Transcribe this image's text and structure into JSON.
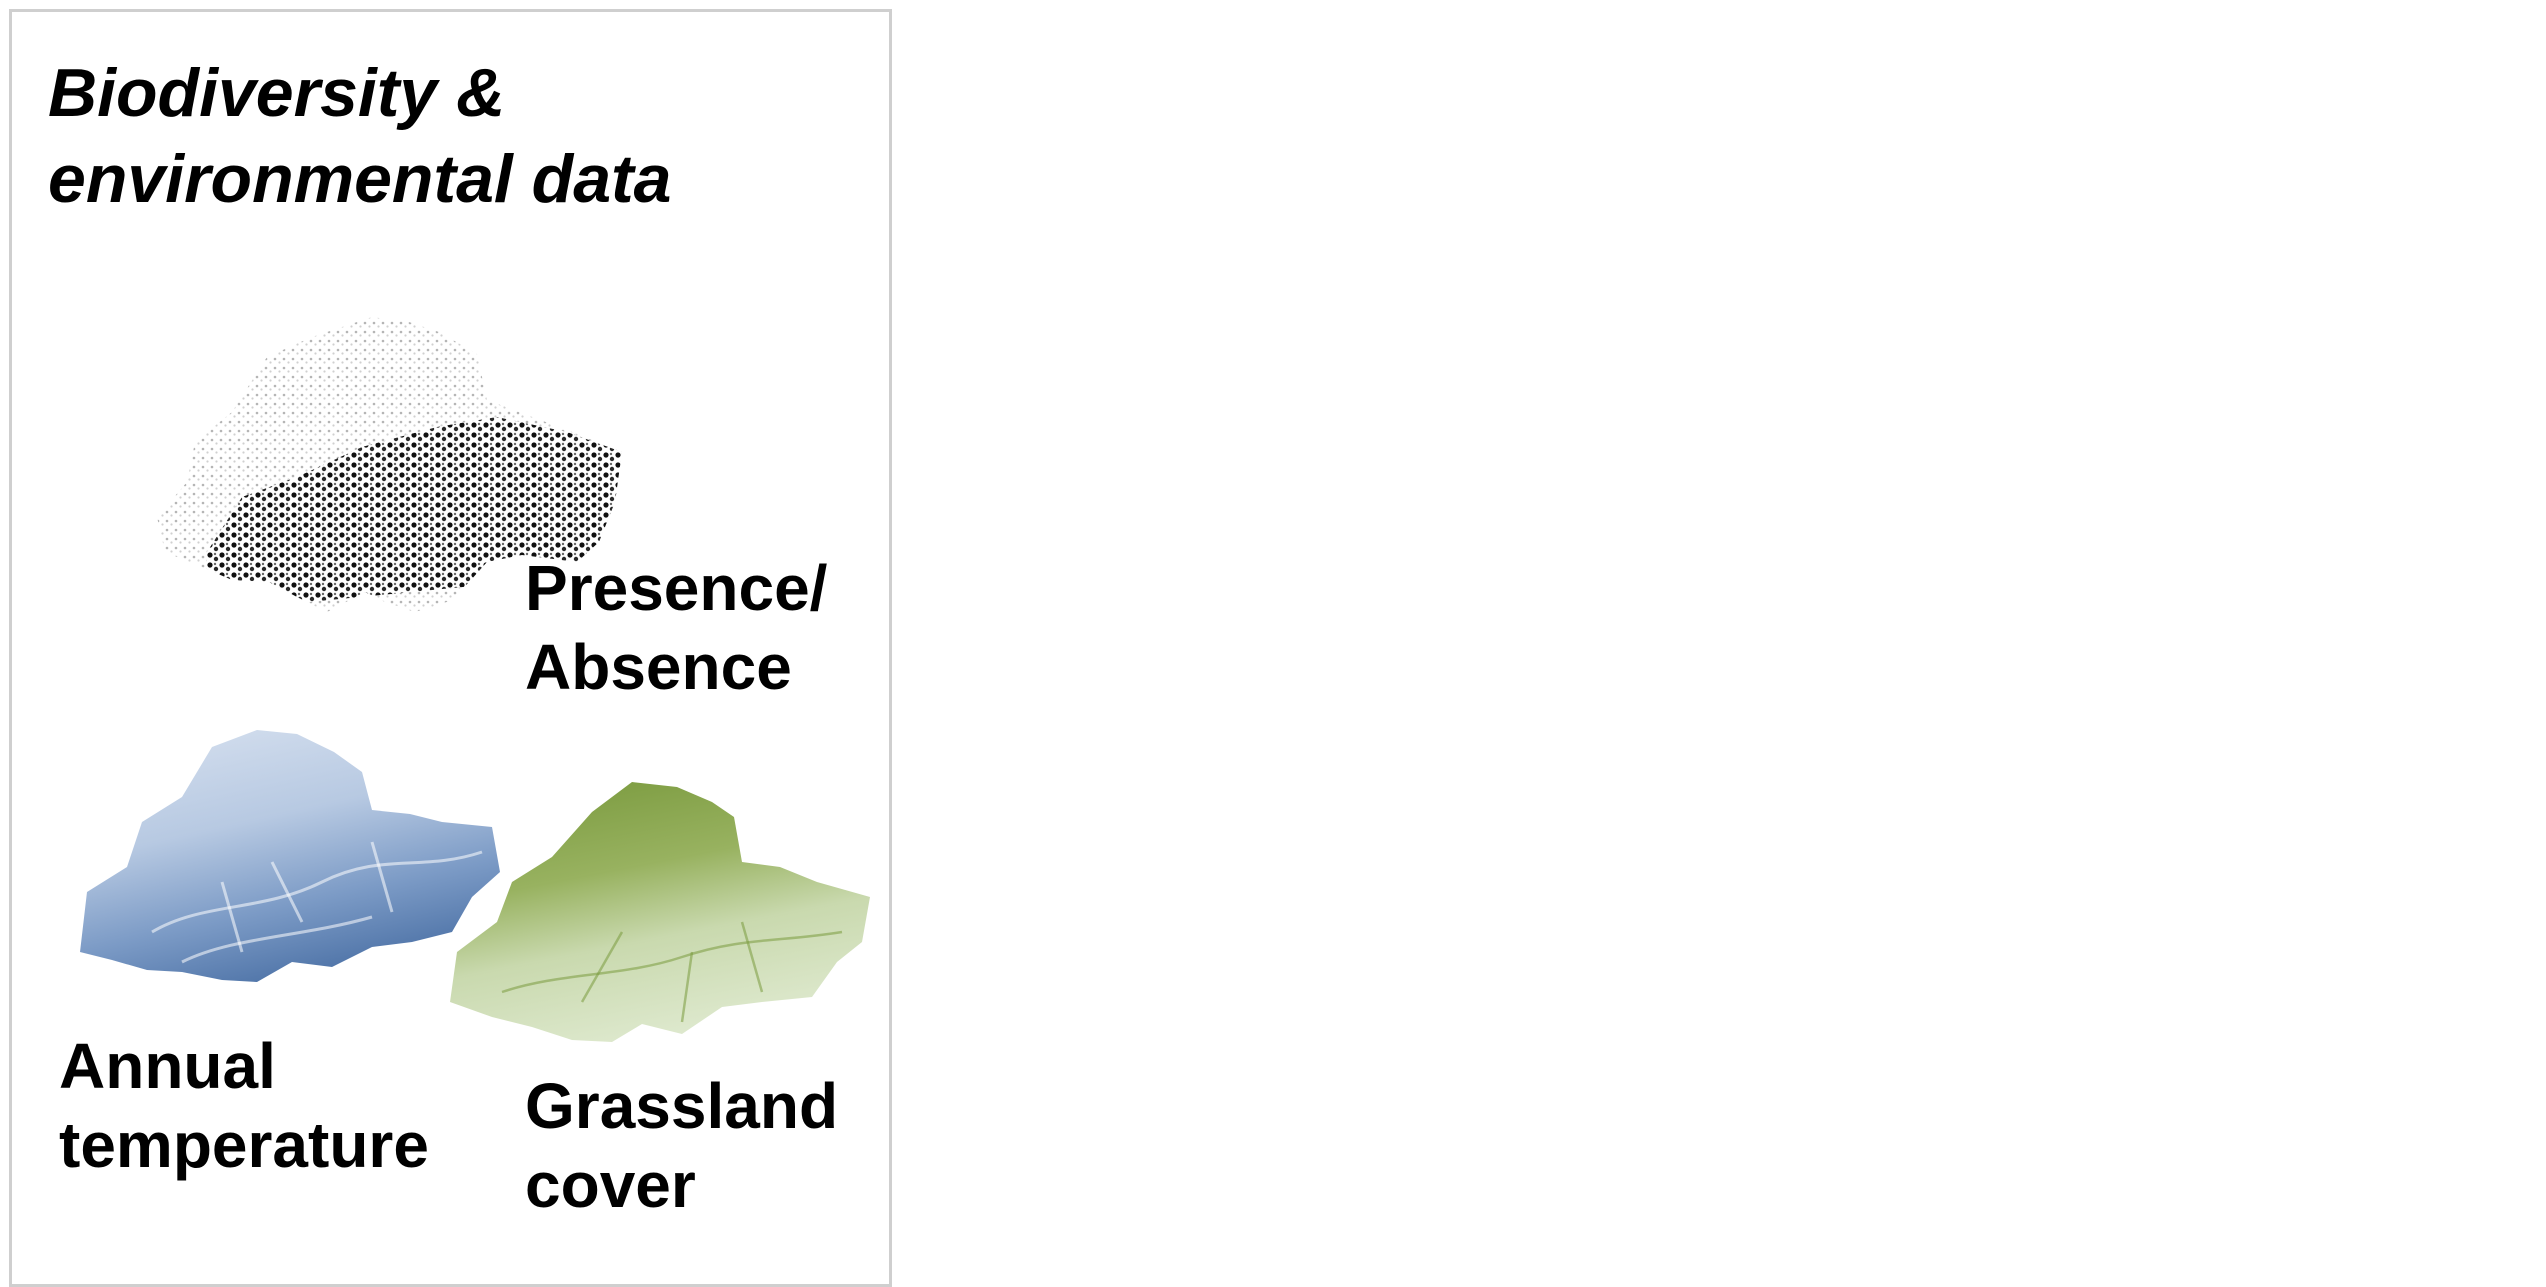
{
  "panel": {
    "title_line1": "Biodiversity &",
    "title_line2": "environmental data"
  },
  "maps": {
    "presence": {
      "icon": "switzerland-presence-absence-map",
      "label_line1": "Presence/",
      "label_line2": "Absence",
      "colors": {
        "absence": "#c8c8c8",
        "presence": "#111111"
      }
    },
    "temperature": {
      "icon": "switzerland-annual-temperature-map",
      "label_line1": "Annual",
      "label_line2": "temperature",
      "colors": {
        "light": "#d3deee",
        "dark": "#4f74a8"
      }
    },
    "grassland": {
      "icon": "switzerland-grassland-cover-map",
      "label_line1": "Grassland",
      "label_line2": "cover",
      "colors": {
        "light": "#dde8cc",
        "dark": "#7a9a3e"
      }
    }
  }
}
